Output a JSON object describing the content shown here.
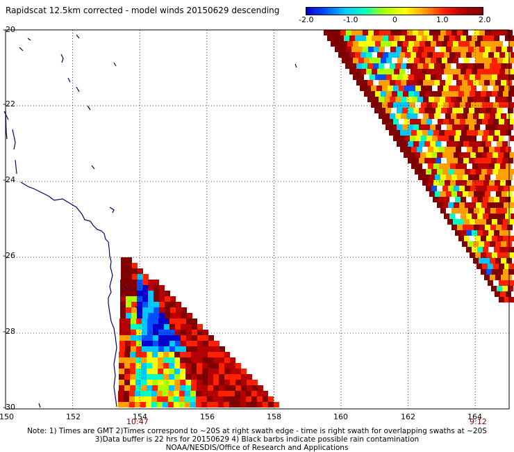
{
  "title": "Rapidscat 12.5km corrected - model winds 20150629 descending",
  "colorbar": {
    "ticks": [
      "-2.0",
      "-1.0",
      "0",
      "1.0",
      "2.0"
    ],
    "tick_values": [
      -2.0,
      -1.0,
      0,
      1.0,
      2.0
    ],
    "range": [
      -2.0,
      2.0
    ],
    "stops": [
      "#0000c8",
      "#0050ff",
      "#00c8ff",
      "#00ffc0",
      "#aaff00",
      "#ffff00",
      "#ffa000",
      "#ff2000",
      "#b40000",
      "#800000"
    ]
  },
  "lat_labels": [
    "-20",
    "-22",
    "-24",
    "-26",
    "-28",
    "-30"
  ],
  "lat_values": [
    -20,
    -22,
    -24,
    -26,
    -28,
    -30
  ],
  "lon_labels": [
    "150",
    "152",
    "154",
    "156",
    "158",
    "160",
    "162",
    "164"
  ],
  "lon_values": [
    150,
    152,
    154,
    156,
    158,
    160,
    162,
    164
  ],
  "times": [
    {
      "label": "10:47",
      "lon": 154.4
    },
    {
      "label": "9:12",
      "lon": 163.9
    }
  ],
  "extent": {
    "lon_min": 150,
    "lon_max": 165,
    "lat_max": -20,
    "lat_min": -30
  },
  "colors": {
    "coast": "#00006e",
    "grid": "#000000",
    "missing": "#ffffff"
  },
  "notes": {
    "line1": "Note: 1) Times are GMT 2)Times correspond to ~20S at right swath edge - time is right swath for overlapping swaths at ~20S",
    "line2": "3)Data buffer is 22 hrs for 20150629 4) Black barbs indicate possible rain contamination",
    "line3": "NOAA/NESDIS/Office of Research and Applications"
  }
}
